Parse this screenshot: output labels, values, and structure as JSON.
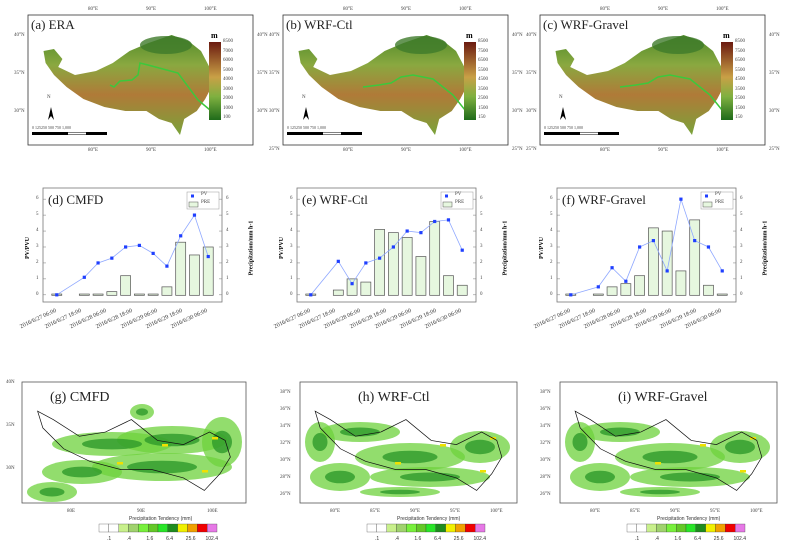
{
  "colors": {
    "pv": "#1f3fff",
    "pv_line": "#8fa8ff",
    "bar_fill": "#e6f7df",
    "bar_edge": "#555555",
    "terrain_high": "#6b1a10",
    "terrain_mid": "#c9a046",
    "terrain_low": "#1f6b1a",
    "track": "#3cc83c"
  },
  "terrain_maps": [
    {
      "title": "(a) ERA",
      "unit": "m",
      "colorbar": [
        "8500",
        "7000",
        "6000",
        "5000",
        "4000",
        "3000",
        "2000",
        "1000",
        "100"
      ],
      "lon_labels": [
        "80°E",
        "90°E",
        "100°E"
      ],
      "lat_labels": [
        "40°N",
        "35°N",
        "30°N"
      ],
      "scale_labels": "0 125250   500   750   1,000",
      "north": "N"
    },
    {
      "title": "(b) WRF-Ctl",
      "unit": "m",
      "colorbar": [
        "8500",
        "7500",
        "6500",
        "5500",
        "4500",
        "3500",
        "2500",
        "1500",
        "150"
      ],
      "lon_labels": [
        "80°E",
        "90°E",
        "100°E"
      ],
      "lat_labels": [
        "40°N",
        "35°N",
        "30°N",
        "25°N"
      ],
      "scale_labels": "0 125250   500   750   1,000",
      "north": "N"
    },
    {
      "title": "(c) WRF-Gravel",
      "unit": "m",
      "colorbar": [
        "8500",
        "7500",
        "6500",
        "5500",
        "4500",
        "3500",
        "2500",
        "1500",
        "150"
      ],
      "lon_labels": [
        "80°E",
        "90°E",
        "100°E"
      ],
      "lat_labels": [
        "40°N",
        "35°N",
        "30°N",
        "25°N"
      ],
      "scale_labels": "0 125250   500   750   1,000",
      "north": "N"
    }
  ],
  "chart_data": [
    {
      "type": "bar+line",
      "title": "(d) CMFD",
      "ylabel": "PV/PVU",
      "y2label": "Precipitation/mm h-1",
      "ylim": [
        0,
        6
      ],
      "yticks": [
        "0",
        "1",
        "2",
        "3",
        "4",
        "5",
        "6"
      ],
      "legend": [
        "PV",
        "PRE"
      ],
      "legend_position": "top-right",
      "xtick_labels": [
        "2016/6/27 06:00",
        "2016/6/27 18:00",
        "2016/6/28 06:00",
        "2016/6/28 18:00",
        "2016/6/29 06:00",
        "2016/6/29 18:00",
        "2016/6/30 06:00"
      ],
      "series": [
        {
          "name": "PV",
          "values": [
            0,
            null,
            1.1,
            2.0,
            2.3,
            3.0,
            3.1,
            2.6,
            1.8,
            3.7,
            5.0,
            2.4
          ]
        },
        {
          "name": "PRE",
          "values": [
            0.05,
            null,
            0.05,
            0.05,
            0.2,
            1.2,
            0.05,
            0.05,
            0.5,
            3.3,
            2.5,
            3.0
          ]
        }
      ]
    },
    {
      "type": "bar+line",
      "title": "(e) WRF-Ctl",
      "ylabel": "PV/PVU",
      "y2label": "Precipitation/mm h-1",
      "ylim": [
        0,
        6
      ],
      "yticks": [
        "0",
        "1",
        "2",
        "3",
        "4",
        "5",
        "6"
      ],
      "legend": [
        "PV",
        "PRE"
      ],
      "legend_position": "top-right",
      "xtick_labels": [
        "2016/6/27 06:00",
        "2016/6/27 18:00",
        "2016/6/28 06:00",
        "2016/6/28 18:00",
        "2016/6/29 06:00",
        "2016/6/29 18:00",
        "2016/6/30 06:00"
      ],
      "series": [
        {
          "name": "PV",
          "values": [
            0,
            null,
            2.1,
            0.7,
            2.0,
            2.3,
            3.0,
            4.0,
            3.9,
            4.6,
            4.7,
            2.8
          ]
        },
        {
          "name": "PRE",
          "values": [
            0.05,
            null,
            0.3,
            1.0,
            0.8,
            4.1,
            3.9,
            3.6,
            2.4,
            4.6,
            1.2,
            0.6
          ]
        }
      ]
    },
    {
      "type": "bar+line",
      "title": "(f) WRF-Gravel",
      "ylabel": "PV/PVU",
      "y2label": "Precipitation/mm h-1",
      "ylim": [
        0,
        6
      ],
      "yticks": [
        "0",
        "1",
        "2",
        "3",
        "4",
        "5",
        "6"
      ],
      "legend": [
        "PV",
        "PRE"
      ],
      "legend_position": "top-right",
      "xtick_labels": [
        "2016/6/27 06:00",
        "2016/6/27 18:00",
        "2016/6/28 06:00",
        "2016/6/28 18:00",
        "2016/6/29 06:00",
        "2016/6/29 18:00",
        "2016/6/30 06:00"
      ],
      "series": [
        {
          "name": "PV",
          "values": [
            0,
            null,
            0.5,
            1.7,
            0.85,
            3.0,
            3.4,
            1.5,
            6.0,
            3.4,
            3.0,
            1.5
          ]
        },
        {
          "name": "PRE",
          "values": [
            0.05,
            null,
            0.05,
            0.5,
            0.7,
            1.2,
            4.2,
            4.0,
            1.5,
            4.7,
            0.6,
            0.05
          ]
        }
      ]
    }
  ],
  "precip_maps": [
    {
      "title": "(g) CMFD",
      "lon_labels": [
        "80E",
        "90E",
        "100E"
      ],
      "lat_labels": [
        "40N",
        "35N",
        "30N"
      ]
    },
    {
      "title": "(h) WRF-Ctl",
      "lon_labels": [
        "80°E",
        "85°E",
        "90°E",
        "95°E",
        "100°E"
      ],
      "lat_labels": [
        "38°N",
        "36°N",
        "34°N",
        "32°N",
        "30°N",
        "28°N",
        "26°N"
      ]
    },
    {
      "title": "(i) WRF-Gravel",
      "lon_labels": [
        "80°E",
        "85°E",
        "90°E",
        "95°E",
        "100°E"
      ],
      "lat_labels": [
        "38°N",
        "36°N",
        "34°N",
        "32°N",
        "30°N",
        "28°N",
        "26°N"
      ]
    }
  ],
  "precip_colorbar": {
    "title": "Precipitation Tendency (mm)",
    "labels": [
      ".1",
      ".4",
      "1.6",
      "6.4",
      "25.6",
      "102.4"
    ],
    "colors": [
      "#ffffff",
      "#ffffff",
      "#c8f08c",
      "#a0d26e",
      "#78f03c",
      "#64c828",
      "#28e628",
      "#1e8c1e",
      "#f0f000",
      "#f0a000",
      "#f00000",
      "#e678e6"
    ]
  }
}
